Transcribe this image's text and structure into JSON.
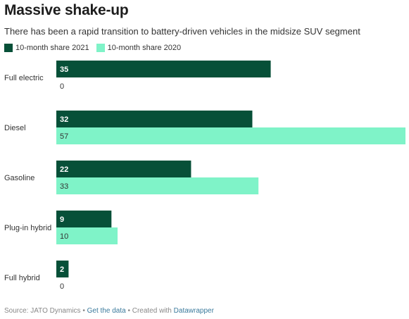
{
  "header": {
    "title": "Massive shake-up",
    "subtitle": "There has been a rapid transition to battery-driven vehicles in the midsize SUV segment"
  },
  "legend": {
    "items": [
      {
        "label": "10-month share 2021",
        "color": "#075038"
      },
      {
        "label": "10-month share 2020",
        "color": "#7ff3c8"
      }
    ]
  },
  "chart_data": {
    "type": "bar",
    "orientation": "horizontal",
    "categories": [
      "Full electric",
      "Diesel",
      "Gasoline",
      "Plug-in hybrid",
      "Full hybrid"
    ],
    "series": [
      {
        "name": "10-month share 2021",
        "color": "#075038",
        "values": [
          35,
          32,
          22,
          9,
          2
        ]
      },
      {
        "name": "10-month share 2020",
        "color": "#7ff3c8",
        "values": [
          0,
          57,
          33,
          10,
          0
        ]
      }
    ],
    "xlim": [
      0,
      57
    ],
    "grid": false,
    "legend_position": "top-left"
  },
  "footer": {
    "source": "Source: JATO Dynamics",
    "sep1": " • ",
    "get_data": "Get the data",
    "sep2": " • Created with ",
    "tool": "Datawrapper"
  }
}
